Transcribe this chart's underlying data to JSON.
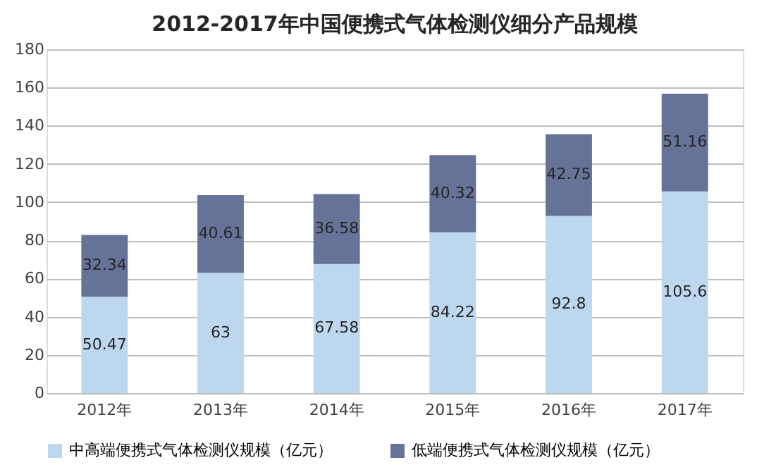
{
  "chart_data": {
    "type": "bar",
    "title": "2012-2017年中国便携式气体检测仪细分产品规模",
    "categories": [
      "2012年",
      "2013年",
      "2014年",
      "2015年",
      "2016年",
      "2017年"
    ],
    "stacked": true,
    "series": [
      {
        "name": "中高端便携式气体检测仪规模（亿元）",
        "color": "#bdd7ee",
        "values": [
          50.47,
          63,
          67.58,
          84.22,
          92.8,
          105.6
        ]
      },
      {
        "name": "低端便携式气体检测仪规模（亿元）",
        "color": "#667298",
        "values": [
          32.34,
          40.61,
          36.58,
          40.32,
          42.75,
          51.16
        ]
      }
    ],
    "ylim": [
      0,
      180
    ],
    "yticks": [
      0,
      20,
      40,
      60,
      80,
      100,
      120,
      140,
      160,
      180
    ],
    "grid": "y",
    "legend": "bottom",
    "data_labels": true
  }
}
